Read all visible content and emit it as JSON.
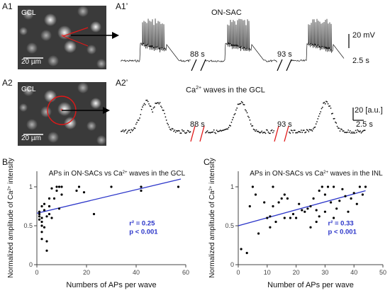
{
  "panels": {
    "a1": {
      "label": "A1",
      "image_label": "GCL",
      "scalebar_label": "20 µm"
    },
    "a1p": {
      "label": "A1’",
      "title": "ON-SAC",
      "gap1": "88 s",
      "gap2": "93 s",
      "scale_v": "20 mV",
      "scale_t": "2.5 s"
    },
    "a2": {
      "label": "A2",
      "image_label": "GCL",
      "scalebar_label": "20 µm"
    },
    "a2p": {
      "label": "A2’",
      "title_pre": "Ca",
      "title_sup": "2+",
      "title_post": " waves in the GCL",
      "gap1": "88 s",
      "gap2": "93 s",
      "scale_v": "20 [a.u.]",
      "scale_t": "2.5 s"
    },
    "b": {
      "label": "B"
    },
    "c": {
      "label": "C"
    }
  },
  "chart_data": [
    {
      "panel": "B",
      "type": "scatter",
      "title_pre": "APs in ON-SACs vs Ca",
      "title_sup": "2+",
      "title_post": " waves in the GCL",
      "xlabel": "Numbers of APs per wave",
      "ylabel_pre": "Normalized amplitude of Ca",
      "ylabel_sup": "2+",
      "ylabel_post": " intensity",
      "xlim": [
        0,
        60
      ],
      "ylim": [
        0,
        1.2
      ],
      "xticks": [
        "0",
        "20",
        "40",
        "60"
      ],
      "yticks": [
        "0",
        "0.5",
        "1"
      ],
      "annotation_r2": "r² = 0.25",
      "annotation_p": "p < 0.001",
      "fit_line": {
        "x": [
          0,
          58
        ],
        "y": [
          0.66,
          1.1
        ]
      },
      "line_color": "#2b35c9",
      "annotation_color": "#2b35c9",
      "points": [
        [
          1,
          0.58
        ],
        [
          1,
          0.62
        ],
        [
          1,
          0.65
        ],
        [
          1,
          0.68
        ],
        [
          2,
          0.33
        ],
        [
          2,
          0.42
        ],
        [
          2,
          0.5
        ],
        [
          2,
          0.55
        ],
        [
          2,
          0.6
        ],
        [
          2,
          0.75
        ],
        [
          3,
          0.48
        ],
        [
          3,
          0.7
        ],
        [
          3,
          0.78
        ],
        [
          4,
          0.3
        ],
        [
          4,
          0.62
        ],
        [
          4,
          0.18
        ],
        [
          5,
          0.65
        ],
        [
          5,
          0.75
        ],
        [
          5,
          0.85
        ],
        [
          6,
          0.98
        ],
        [
          6,
          0.6
        ],
        [
          7,
          0.85
        ],
        [
          8,
          0.95
        ],
        [
          8,
          1.0
        ],
        [
          9,
          1.0
        ],
        [
          9,
          0.72
        ],
        [
          10,
          1.0
        ],
        [
          10,
          0.9
        ],
        [
          16,
          0.95
        ],
        [
          17,
          1.0
        ],
        [
          19,
          0.93
        ],
        [
          23,
          0.65
        ],
        [
          30,
          1.0
        ],
        [
          42,
          0.95
        ],
        [
          42,
          1.0
        ],
        [
          57,
          1.0
        ]
      ]
    },
    {
      "panel": "C",
      "type": "scatter",
      "title_pre": "APs in ON-SACs vs Ca",
      "title_sup": "2+",
      "title_post": " waves in the INL",
      "xlabel": "Number of APs per wave",
      "ylabel_pre": "Normalized amplitude of Ca",
      "ylabel_sup": "2+",
      "ylabel_post": " intensity",
      "xlim": [
        0,
        50
      ],
      "ylim": [
        0,
        1.2
      ],
      "xticks": [
        "0",
        "10",
        "20",
        "30",
        "40",
        "50"
      ],
      "yticks": [
        "0",
        "0.5",
        "1"
      ],
      "annotation_r2": "r² = 0.33",
      "annotation_p": "p < 0.001",
      "fit_line": {
        "x": [
          0,
          44
        ],
        "y": [
          0.5,
          0.95
        ]
      },
      "line_color": "#2b35c9",
      "annotation_color": "#2b35c9",
      "points": [
        [
          1,
          0.2
        ],
        [
          3,
          0.15
        ],
        [
          4,
          0.75
        ],
        [
          5,
          1.0
        ],
        [
          6,
          0.9
        ],
        [
          7,
          0.4
        ],
        [
          9,
          0.8
        ],
        [
          10,
          0.6
        ],
        [
          11,
          0.62
        ],
        [
          11,
          0.48
        ],
        [
          12,
          1.0
        ],
        [
          12,
          0.75
        ],
        [
          13,
          0.55
        ],
        [
          14,
          0.8
        ],
        [
          15,
          0.85
        ],
        [
          16,
          0.9
        ],
        [
          16,
          0.6
        ],
        [
          17,
          0.85
        ],
        [
          18,
          0.6
        ],
        [
          19,
          0.65
        ],
        [
          20,
          0.6
        ],
        [
          21,
          0.78
        ],
        [
          22,
          0.7
        ],
        [
          23,
          0.68
        ],
        [
          24,
          0.72
        ],
        [
          25,
          0.75
        ],
        [
          25,
          0.48
        ],
        [
          26,
          0.85
        ],
        [
          27,
          0.7
        ],
        [
          27,
          0.55
        ],
        [
          28,
          0.95
        ],
        [
          28,
          0.62
        ],
        [
          29,
          1.0
        ],
        [
          30,
          0.9
        ],
        [
          30,
          0.68
        ],
        [
          31,
          1.0
        ],
        [
          32,
          0.8
        ],
        [
          33,
          1.0
        ],
        [
          33,
          0.6
        ],
        [
          34,
          0.72
        ],
        [
          35,
          0.82
        ],
        [
          36,
          0.97
        ],
        [
          37,
          0.88
        ],
        [
          38,
          0.68
        ],
        [
          39,
          0.85
        ],
        [
          40,
          0.92
        ],
        [
          41,
          0.78
        ],
        [
          42,
          1.0
        ],
        [
          43,
          0.9
        ],
        [
          44,
          1.0
        ]
      ]
    }
  ]
}
